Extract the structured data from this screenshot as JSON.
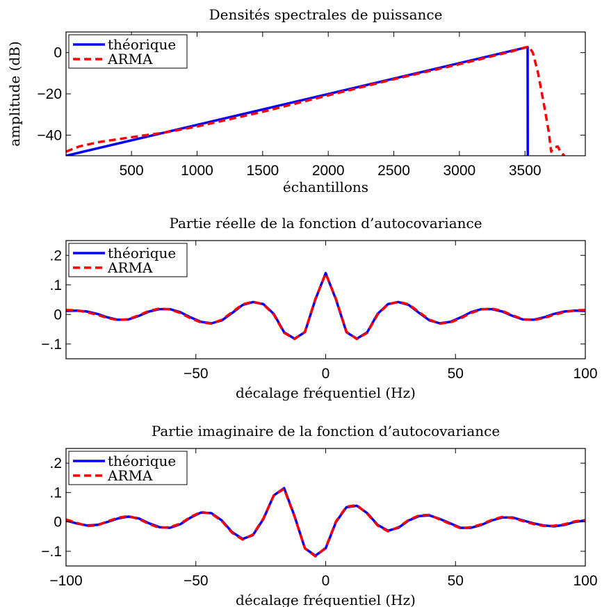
{
  "chart_data": [
    {
      "type": "line",
      "title": "Densités spectrales de puissance",
      "xlabel": "échantillons",
      "ylabel": "amplitude (dB)",
      "xlim": [
        1,
        3960
      ],
      "ylim": [
        -50,
        10
      ],
      "xticks": [
        500,
        1000,
        1500,
        2000,
        2500,
        3000,
        3500
      ],
      "yticks": [
        -40,
        -20,
        0
      ],
      "legend_position": "top-left",
      "series": [
        {
          "name": "théorique",
          "color": "#0000ff",
          "style": "solid",
          "x": [
            1,
            3520,
            3520,
            3521,
            3521
          ],
          "y": [
            -50,
            2.7,
            2.7,
            -50,
            -50
          ]
        },
        {
          "name": "ARMA",
          "color": "#ff0000",
          "style": "dashed",
          "x": [
            1,
            100,
            250,
            500,
            750,
            1000,
            1500,
            2000,
            2500,
            3000,
            3400,
            3500,
            3530,
            3560,
            3600,
            3650,
            3680,
            3700,
            3720,
            3750,
            3770,
            3800
          ],
          "y": [
            -48,
            -45.5,
            -43.4,
            -41,
            -38.8,
            -35.8,
            -28.7,
            -20.7,
            -12.9,
            -5.6,
            0.6,
            2.5,
            2.9,
            0,
            -10,
            -27,
            -38,
            -48,
            -46,
            -45.5,
            -48,
            -50
          ]
        }
      ]
    },
    {
      "type": "line",
      "title": "Partie réelle de la fonction d’autocovariance",
      "xlabel": "décalage fréquentiel (Hz)",
      "ylabel": "",
      "xlim": [
        -100,
        100
      ],
      "ylim": [
        -0.15,
        0.25
      ],
      "xticks": [
        -50,
        0,
        50,
        100
      ],
      "yticks": [
        -0.1,
        0,
        0.1,
        0.2
      ],
      "legend_position": "top-left",
      "series": [
        {
          "name": "théorique",
          "color": "#0000ff",
          "style": "solid",
          "x": [
            -100,
            -96,
            -92,
            -88,
            -84,
            -80,
            -76,
            -72,
            -68,
            -64,
            -60,
            -56,
            -52,
            -48,
            -44,
            -40,
            -36,
            -32,
            -28,
            -24,
            -20,
            -16,
            -12,
            -8,
            -4,
            0,
            4,
            8,
            12,
            16,
            20,
            24,
            28,
            32,
            36,
            40,
            44,
            48,
            52,
            56,
            60,
            64,
            68,
            72,
            76,
            80,
            84,
            88,
            92,
            96,
            100
          ],
          "y": [
            0.012,
            0.013,
            0.01,
            0.002,
            -0.01,
            -0.018,
            -0.017,
            -0.005,
            0.01,
            0.018,
            0.018,
            0.008,
            -0.01,
            -0.025,
            -0.03,
            -0.02,
            0.005,
            0.032,
            0.042,
            0.035,
            0.002,
            -0.06,
            -0.082,
            -0.06,
            0.05,
            0.14,
            0.05,
            -0.06,
            -0.082,
            -0.06,
            0.002,
            0.035,
            0.042,
            0.032,
            0.005,
            -0.02,
            -0.03,
            -0.025,
            -0.01,
            0.008,
            0.018,
            0.018,
            0.01,
            -0.005,
            -0.017,
            -0.018,
            -0.01,
            0.002,
            0.01,
            0.013,
            0.012
          ]
        },
        {
          "name": "ARMA",
          "color": "#ff0000",
          "style": "dashed",
          "x": [
            -100,
            -96,
            -92,
            -88,
            -84,
            -80,
            -76,
            -72,
            -68,
            -64,
            -60,
            -56,
            -52,
            -48,
            -44,
            -40,
            -36,
            -32,
            -28,
            -24,
            -20,
            -16,
            -12,
            -8,
            -4,
            0,
            4,
            8,
            12,
            16,
            20,
            24,
            28,
            32,
            36,
            40,
            44,
            48,
            52,
            56,
            60,
            64,
            68,
            72,
            76,
            80,
            84,
            88,
            92,
            96,
            100
          ],
          "y": [
            0.015,
            0.014,
            0.008,
            -0.001,
            -0.012,
            -0.019,
            -0.016,
            -0.003,
            0.012,
            0.02,
            0.017,
            0.005,
            -0.013,
            -0.027,
            -0.031,
            -0.018,
            0.008,
            0.034,
            0.043,
            0.034,
            0.0,
            -0.062,
            -0.083,
            -0.059,
            0.052,
            0.138,
            0.052,
            -0.059,
            -0.083,
            -0.062,
            0.0,
            0.034,
            0.043,
            0.034,
            0.008,
            -0.018,
            -0.031,
            -0.027,
            -0.013,
            0.005,
            0.017,
            0.02,
            0.012,
            -0.003,
            -0.016,
            -0.019,
            -0.012,
            -0.001,
            0.008,
            0.014,
            0.015
          ]
        }
      ]
    },
    {
      "type": "line",
      "title": "Partie imaginaire de la fonction d’autocovariance",
      "xlabel": "décalage fréquentiel (Hz)",
      "ylabel": "",
      "xlim": [
        -100,
        100
      ],
      "ylim": [
        -0.15,
        0.25
      ],
      "xticks": [
        -100,
        -50,
        0,
        50,
        100
      ],
      "yticks": [
        -0.1,
        0,
        0.1,
        0.2
      ],
      "legend_position": "top-left",
      "series": [
        {
          "name": "théorique",
          "color": "#0000ff",
          "style": "solid",
          "x": [
            -100,
            -96,
            -92,
            -88,
            -84,
            -80,
            -76,
            -72,
            -68,
            -64,
            -60,
            -56,
            -52,
            -48,
            -44,
            -40,
            -36,
            -32,
            -28,
            -24,
            -20,
            -16,
            -12,
            -8,
            -4,
            0,
            4,
            8,
            12,
            16,
            20,
            24,
            28,
            32,
            36,
            40,
            44,
            48,
            52,
            56,
            60,
            64,
            68,
            72,
            76,
            80,
            84,
            88,
            92,
            96,
            100
          ],
          "y": [
            0.005,
            -0.005,
            -0.012,
            -0.01,
            0.0,
            0.012,
            0.018,
            0.012,
            -0.005,
            -0.018,
            -0.02,
            -0.008,
            0.015,
            0.032,
            0.03,
            0.005,
            -0.035,
            -0.058,
            -0.045,
            0.01,
            0.09,
            0.115,
            0.02,
            -0.09,
            -0.115,
            -0.09,
            0.0,
            0.05,
            0.055,
            0.03,
            -0.01,
            -0.03,
            -0.02,
            0.005,
            0.02,
            0.022,
            0.01,
            -0.005,
            -0.02,
            -0.02,
            -0.01,
            0.005,
            0.015,
            0.015,
            0.005,
            -0.005,
            -0.012,
            -0.015,
            -0.01,
            0.0,
            0.005
          ]
        },
        {
          "name": "ARMA",
          "color": "#ff0000",
          "style": "dashed",
          "x": [
            -100,
            -96,
            -92,
            -88,
            -84,
            -80,
            -76,
            -72,
            -68,
            -64,
            -60,
            -56,
            -52,
            -48,
            -44,
            -40,
            -36,
            -32,
            -28,
            -24,
            -20,
            -16,
            -12,
            -8,
            -4,
            0,
            4,
            8,
            12,
            16,
            20,
            24,
            28,
            32,
            36,
            40,
            44,
            48,
            52,
            56,
            60,
            64,
            68,
            72,
            76,
            80,
            84,
            88,
            92,
            96,
            100
          ],
          "y": [
            0.008,
            -0.003,
            -0.014,
            -0.012,
            0.002,
            0.014,
            0.02,
            0.01,
            -0.007,
            -0.02,
            -0.018,
            -0.006,
            0.017,
            0.034,
            0.028,
            0.003,
            -0.037,
            -0.06,
            -0.043,
            0.012,
            0.09,
            0.113,
            0.018,
            -0.09,
            -0.117,
            -0.088,
            0.002,
            0.052,
            0.057,
            0.028,
            -0.012,
            -0.032,
            -0.018,
            0.007,
            0.022,
            0.024,
            0.008,
            -0.007,
            -0.022,
            -0.018,
            -0.008,
            0.007,
            0.017,
            0.013,
            0.003,
            -0.007,
            -0.014,
            -0.013,
            -0.008,
            0.002,
            0.006
          ]
        }
      ]
    }
  ]
}
